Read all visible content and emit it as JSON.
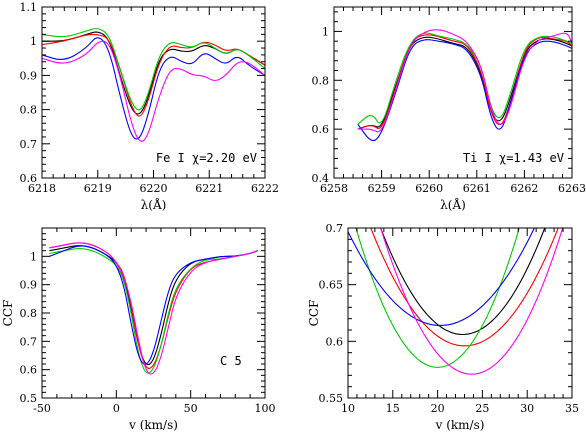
{
  "chart_data": [
    {
      "type": "line",
      "xlabel": "λ(Å)",
      "ylabel": "",
      "annotation": "Fe I χ=2.20 eV",
      "annotation_pos": "bottom-right",
      "xlim": [
        6218,
        6222
      ],
      "ylim": [
        0.6,
        1.1
      ],
      "xticks": [
        6218,
        6219,
        6220,
        6221,
        6222
      ],
      "xticklabels": [
        "6218",
        "6219",
        "6220",
        "6221",
        "6222"
      ],
      "yticks": [
        0.6,
        0.7,
        0.8,
        0.9,
        1.0,
        1.1
      ],
      "yticklabels": [
        "0.6",
        "0.7",
        "0.8",
        "0.9",
        "1",
        "1.1"
      ],
      "series": [
        {
          "color": "#000000",
          "x": [
            6218,
            6218.4,
            6218.8,
            6219,
            6219.2,
            6219.4,
            6219.6,
            6219.75,
            6219.9,
            6220.1,
            6220.3,
            6220.5,
            6220.7,
            6220.9,
            6221.1,
            6221.3,
            6221.5,
            6221.7,
            6222
          ],
          "y": [
            1.0,
            1.0,
            1.02,
            1.03,
            1.01,
            0.9,
            0.8,
            0.78,
            0.83,
            0.95,
            0.98,
            0.97,
            0.97,
            0.99,
            0.98,
            0.96,
            0.98,
            0.96,
            0.93
          ]
        },
        {
          "color": "#ff0000",
          "x": [
            6218,
            6218.4,
            6218.8,
            6219,
            6219.2,
            6219.4,
            6219.6,
            6219.75,
            6219.9,
            6220.1,
            6220.3,
            6220.5,
            6220.7,
            6220.9,
            6221.1,
            6221.3,
            6221.5,
            6221.7,
            6222
          ],
          "y": [
            0.99,
            1.0,
            1.02,
            1.02,
            1.01,
            0.92,
            0.81,
            0.77,
            0.82,
            0.94,
            0.99,
            0.98,
            0.98,
            1.0,
            0.99,
            0.97,
            0.98,
            0.96,
            0.93
          ]
        },
        {
          "color": "#00cc00",
          "x": [
            6218,
            6218.4,
            6218.8,
            6219,
            6219.2,
            6219.4,
            6219.6,
            6219.75,
            6219.9,
            6220.1,
            6220.3,
            6220.5,
            6220.7,
            6220.9,
            6221.1,
            6221.3,
            6221.5,
            6221.7,
            6222
          ],
          "y": [
            1.02,
            1.01,
            1.03,
            1.04,
            1.02,
            0.92,
            0.82,
            0.79,
            0.84,
            0.96,
            1.0,
            0.99,
            0.98,
            1.0,
            0.98,
            0.96,
            0.98,
            0.96,
            0.92
          ]
        },
        {
          "color": "#0000ff",
          "x": [
            6218,
            6218.4,
            6218.8,
            6219,
            6219.2,
            6219.4,
            6219.6,
            6219.75,
            6219.9,
            6220.1,
            6220.3,
            6220.5,
            6220.7,
            6220.9,
            6221.1,
            6221.3,
            6221.5,
            6221.7,
            6222
          ],
          "y": [
            0.96,
            0.94,
            0.98,
            1.02,
            0.98,
            0.84,
            0.72,
            0.71,
            0.78,
            0.92,
            0.96,
            0.94,
            0.93,
            0.97,
            0.95,
            0.93,
            0.96,
            0.93,
            0.9
          ]
        },
        {
          "color": "#ff00ff",
          "x": [
            6218,
            6218.4,
            6218.8,
            6219,
            6219.2,
            6219.4,
            6219.6,
            6219.75,
            6219.9,
            6220.1,
            6220.3,
            6220.5,
            6220.7,
            6220.9,
            6221.1,
            6221.3,
            6221.5,
            6221.7,
            6222
          ],
          "y": [
            0.95,
            0.93,
            0.96,
            1.0,
            1.0,
            0.9,
            0.76,
            0.7,
            0.72,
            0.84,
            0.92,
            0.92,
            0.9,
            0.9,
            0.88,
            0.9,
            0.94,
            0.94,
            0.9
          ]
        }
      ]
    },
    {
      "type": "line",
      "xlabel": "λ(Å)",
      "ylabel": "",
      "annotation": "Ti I χ=1.43 eV",
      "annotation_pos": "bottom-right",
      "xlim": [
        6258,
        6263
      ],
      "ylim": [
        0.4,
        1.1
      ],
      "xticks": [
        6258,
        6259,
        6260,
        6261,
        6262,
        6263
      ],
      "xticklabels": [
        "6258",
        "6259",
        "6260",
        "6261",
        "6262",
        "6263"
      ],
      "yticks": [
        0.4,
        0.6,
        0.8,
        1.0
      ],
      "yticklabels": [
        "0.4",
        "0.6",
        "0.8",
        "1"
      ],
      "series": [
        {
          "color": "#000000",
          "x": [
            6258.5,
            6258.8,
            6259,
            6259.3,
            6259.6,
            6259.9,
            6260.2,
            6260.5,
            6260.8,
            6261.1,
            6261.3,
            6261.5,
            6261.7,
            6262,
            6262.3,
            6262.6,
            6262.9,
            6263
          ],
          "y": [
            0.6,
            0.62,
            0.6,
            0.78,
            0.95,
            0.98,
            0.97,
            0.95,
            0.94,
            0.83,
            0.66,
            0.62,
            0.72,
            0.92,
            0.97,
            0.97,
            0.95,
            0.94
          ]
        },
        {
          "color": "#ff0000",
          "x": [
            6258.5,
            6258.8,
            6259,
            6259.3,
            6259.6,
            6259.9,
            6260.2,
            6260.5,
            6260.8,
            6261.1,
            6261.3,
            6261.5,
            6261.7,
            6262,
            6262.3,
            6262.6,
            6262.9,
            6263
          ],
          "y": [
            0.6,
            0.62,
            0.59,
            0.77,
            0.96,
            0.99,
            0.98,
            0.96,
            0.95,
            0.84,
            0.66,
            0.6,
            0.7,
            0.93,
            0.98,
            0.97,
            0.96,
            0.94
          ]
        },
        {
          "color": "#00cc00",
          "x": [
            6258.5,
            6258.8,
            6259,
            6259.3,
            6259.6,
            6259.9,
            6260.2,
            6260.5,
            6260.8,
            6261.1,
            6261.3,
            6261.5,
            6261.7,
            6262,
            6262.3,
            6262.6,
            6262.9,
            6263
          ],
          "y": [
            0.62,
            0.67,
            0.6,
            0.8,
            0.96,
            1.0,
            0.98,
            0.97,
            0.95,
            0.86,
            0.68,
            0.63,
            0.74,
            0.94,
            0.98,
            0.98,
            0.96,
            0.95
          ]
        },
        {
          "color": "#0000ff",
          "x": [
            6258.5,
            6258.8,
            6259,
            6259.3,
            6259.6,
            6259.9,
            6260.2,
            6260.5,
            6260.8,
            6261.1,
            6261.3,
            6261.5,
            6261.7,
            6262,
            6262.3,
            6262.6,
            6262.9,
            6263
          ],
          "y": [
            0.62,
            0.54,
            0.58,
            0.75,
            0.94,
            0.97,
            0.96,
            0.95,
            0.93,
            0.82,
            0.64,
            0.58,
            0.7,
            0.91,
            0.96,
            0.96,
            0.94,
            0.93
          ]
        },
        {
          "color": "#ff00ff",
          "x": [
            6258.5,
            6258.8,
            6259,
            6259.3,
            6259.6,
            6259.9,
            6260.2,
            6260.5,
            6260.8,
            6261.1,
            6261.3,
            6261.5,
            6261.7,
            6262,
            6262.3,
            6262.6,
            6262.9,
            6263
          ],
          "y": [
            0.6,
            0.6,
            0.58,
            0.76,
            0.95,
            1.0,
            1.01,
            0.99,
            0.96,
            0.86,
            0.68,
            0.6,
            0.68,
            0.9,
            0.97,
            0.98,
            1.0,
            0.95
          ]
        }
      ]
    },
    {
      "type": "line",
      "xlabel": "v (km/s)",
      "ylabel": "CCF",
      "annotation": "C 5",
      "annotation_pos": "bottom-right",
      "xlim": [
        -50,
        100
      ],
      "ylim": [
        0.5,
        1.1
      ],
      "xticks": [
        -50,
        0,
        50,
        100
      ],
      "xticklabels": [
        "-50",
        "0",
        "50",
        "100"
      ],
      "yticks": [
        0.5,
        0.6,
        0.7,
        0.8,
        0.9,
        1.0
      ],
      "yticklabels": [
        "0.5",
        "0.6",
        "0.7",
        "0.8",
        "0.9",
        "1"
      ],
      "series": [
        {
          "color": "#000000",
          "x": [
            -45,
            -35,
            -25,
            -15,
            -5,
            0,
            5,
            10,
            15,
            20,
            25,
            30,
            35,
            40,
            50,
            60,
            70,
            80,
            90,
            95
          ],
          "y": [
            1.02,
            1.03,
            1.04,
            1.03,
            1.0,
            0.98,
            0.93,
            0.82,
            0.68,
            0.61,
            0.63,
            0.72,
            0.84,
            0.92,
            0.98,
            0.99,
            1.0,
            1.0,
            1.01,
            1.02
          ]
        },
        {
          "color": "#ff0000",
          "x": [
            -45,
            -35,
            -25,
            -15,
            -5,
            0,
            5,
            10,
            15,
            20,
            25,
            30,
            35,
            40,
            50,
            60,
            70,
            80,
            90,
            95
          ],
          "y": [
            1.03,
            1.04,
            1.05,
            1.04,
            1.01,
            0.98,
            0.94,
            0.83,
            0.68,
            0.6,
            0.61,
            0.68,
            0.79,
            0.88,
            0.96,
            0.98,
            0.99,
            1.0,
            1.01,
            1.02
          ]
        },
        {
          "color": "#00cc00",
          "x": [
            -45,
            -35,
            -25,
            -15,
            -5,
            0,
            5,
            10,
            15,
            20,
            25,
            30,
            35,
            40,
            50,
            60,
            70,
            80,
            90,
            95
          ],
          "y": [
            1.01,
            1.02,
            1.03,
            1.02,
            0.99,
            0.97,
            0.92,
            0.8,
            0.65,
            0.58,
            0.6,
            0.68,
            0.8,
            0.89,
            0.96,
            0.99,
            0.99,
            1.0,
            1.01,
            1.02
          ]
        },
        {
          "color": "#0000ff",
          "x": [
            -45,
            -35,
            -25,
            -15,
            -5,
            0,
            5,
            10,
            15,
            20,
            25,
            30,
            35,
            40,
            50,
            60,
            70,
            80,
            90,
            95
          ],
          "y": [
            1.0,
            1.02,
            1.04,
            1.03,
            1.0,
            0.97,
            0.9,
            0.76,
            0.64,
            0.61,
            0.66,
            0.77,
            0.88,
            0.94,
            0.98,
            0.99,
            1.0,
            1.0,
            1.01,
            1.02
          ]
        },
        {
          "color": "#ff00ff",
          "x": [
            -45,
            -35,
            -25,
            -15,
            -5,
            0,
            5,
            10,
            15,
            20,
            25,
            30,
            35,
            40,
            50,
            60,
            70,
            80,
            90,
            95
          ],
          "y": [
            1.03,
            1.04,
            1.05,
            1.04,
            1.01,
            0.98,
            0.93,
            0.84,
            0.7,
            0.59,
            0.58,
            0.64,
            0.75,
            0.86,
            0.95,
            0.98,
            0.99,
            1.0,
            1.01,
            1.02
          ]
        }
      ]
    },
    {
      "type": "line",
      "xlabel": "v (km/s)",
      "ylabel": "CCF",
      "xlim": [
        10,
        35
      ],
      "ylim": [
        0.55,
        0.7
      ],
      "xticks": [
        10,
        15,
        20,
        25,
        30,
        35
      ],
      "xticklabels": [
        "10",
        "15",
        "20",
        "25",
        "30",
        "35"
      ],
      "yticks": [
        0.55,
        0.6,
        0.65,
        0.7
      ],
      "yticklabels": [
        "0.55",
        "0.6",
        "0.65",
        "0.7"
      ],
      "series": [
        {
          "color": "#000000",
          "center": 22.8,
          "min": 0.606,
          "curv": 0.00112
        },
        {
          "color": "#ff0000",
          "center": 23.0,
          "min": 0.596,
          "curv": 0.00095
        },
        {
          "color": "#00cc00",
          "center": 20.0,
          "min": 0.577,
          "curv": 0.00148
        },
        {
          "color": "#0000ff",
          "center": 20.3,
          "min": 0.614,
          "curv": 0.00078
        },
        {
          "color": "#ff00ff",
          "center": 23.8,
          "min": 0.571,
          "curv": 0.00125
        }
      ]
    }
  ]
}
